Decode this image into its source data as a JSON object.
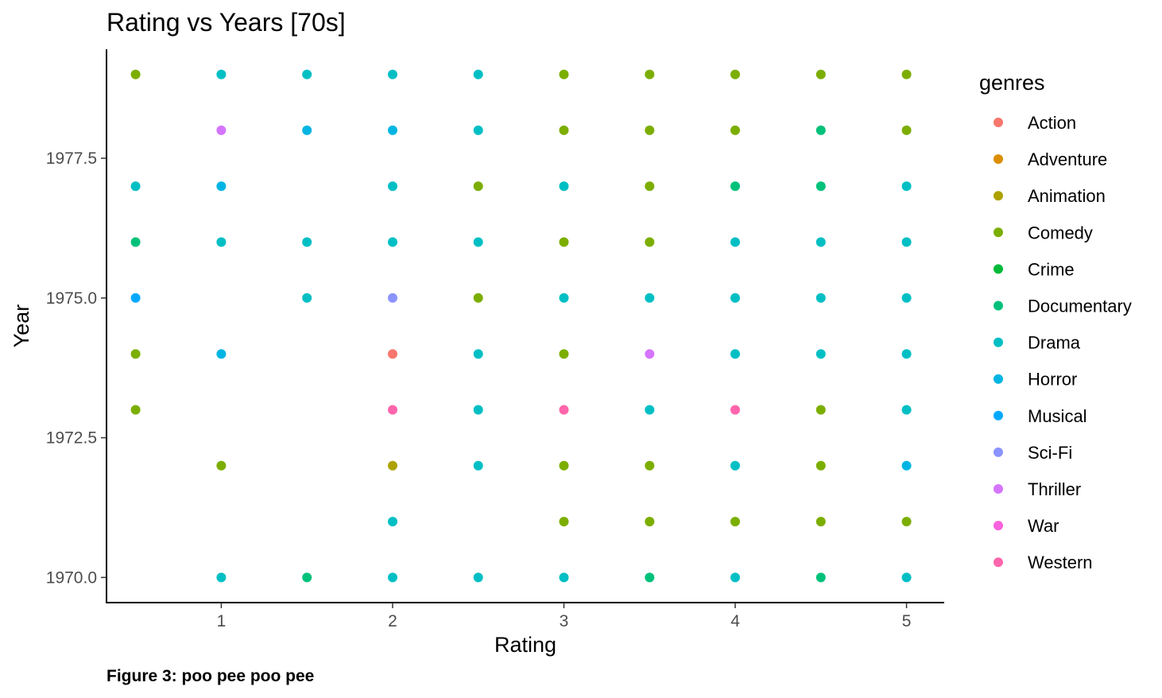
{
  "caption": "Figure 3: poo pee poo pee",
  "chart_data": {
    "type": "scatter",
    "title": "Rating vs Years [70s]",
    "xlabel": "Rating",
    "ylabel": "Year",
    "xlim": [
      0.33,
      5.22
    ],
    "ylim": [
      1969.55,
      1979.45
    ],
    "x_ticks": [
      1,
      2,
      3,
      4,
      5
    ],
    "x_tick_labels": [
      "1",
      "2",
      "3",
      "4",
      "5"
    ],
    "y_ticks": [
      1970.0,
      1972.5,
      1975.0,
      1977.5
    ],
    "y_tick_labels": [
      "1970.0",
      "1972.5",
      "1975.0",
      "1977.5"
    ],
    "grid": false,
    "legend": {
      "title": "genres",
      "position": "right",
      "entries": [
        {
          "name": "Action",
          "color": "#F8766D"
        },
        {
          "name": "Adventure",
          "color": "#DB8E00"
        },
        {
          "name": "Animation",
          "color": "#AEA200"
        },
        {
          "name": "Comedy",
          "color": "#7CAE00"
        },
        {
          "name": "Crime",
          "color": "#00BA38"
        },
        {
          "name": "Documentary",
          "color": "#00C17A"
        },
        {
          "name": "Drama",
          "color": "#00BFC4"
        },
        {
          "name": "Horror",
          "color": "#00B5E3"
        },
        {
          "name": "Musical",
          "color": "#00A9FF"
        },
        {
          "name": "Sci-Fi",
          "color": "#8B93FF"
        },
        {
          "name": "Thriller",
          "color": "#D575FE"
        },
        {
          "name": "War",
          "color": "#F962DD"
        },
        {
          "name": "Western",
          "color": "#FF65AC"
        }
      ]
    },
    "points": [
      {
        "x": 0.5,
        "y": 1979,
        "genre": "Comedy"
      },
      {
        "x": 1,
        "y": 1979,
        "genre": "Drama"
      },
      {
        "x": 1.5,
        "y": 1979,
        "genre": "Drama"
      },
      {
        "x": 2,
        "y": 1979,
        "genre": "Drama"
      },
      {
        "x": 2.5,
        "y": 1979,
        "genre": "Drama"
      },
      {
        "x": 3,
        "y": 1979,
        "genre": "Comedy"
      },
      {
        "x": 3.5,
        "y": 1979,
        "genre": "Comedy"
      },
      {
        "x": 4,
        "y": 1979,
        "genre": "Comedy"
      },
      {
        "x": 4.5,
        "y": 1979,
        "genre": "Comedy"
      },
      {
        "x": 5,
        "y": 1979,
        "genre": "Comedy"
      },
      {
        "x": 1,
        "y": 1978,
        "genre": "Thriller"
      },
      {
        "x": 1.5,
        "y": 1978,
        "genre": "Horror"
      },
      {
        "x": 2,
        "y": 1978,
        "genre": "Horror"
      },
      {
        "x": 2.5,
        "y": 1978,
        "genre": "Drama"
      },
      {
        "x": 3,
        "y": 1978,
        "genre": "Comedy"
      },
      {
        "x": 3.5,
        "y": 1978,
        "genre": "Comedy"
      },
      {
        "x": 4,
        "y": 1978,
        "genre": "Comedy"
      },
      {
        "x": 4.5,
        "y": 1978,
        "genre": "Documentary"
      },
      {
        "x": 5,
        "y": 1978,
        "genre": "Comedy"
      },
      {
        "x": 0.5,
        "y": 1977,
        "genre": "Drama"
      },
      {
        "x": 1,
        "y": 1977,
        "genre": "Horror"
      },
      {
        "x": 2,
        "y": 1977,
        "genre": "Drama"
      },
      {
        "x": 2.5,
        "y": 1977,
        "genre": "Comedy"
      },
      {
        "x": 3,
        "y": 1977,
        "genre": "Drama"
      },
      {
        "x": 3.5,
        "y": 1977,
        "genre": "Comedy"
      },
      {
        "x": 4,
        "y": 1977,
        "genre": "Documentary"
      },
      {
        "x": 4.5,
        "y": 1977,
        "genre": "Documentary"
      },
      {
        "x": 5,
        "y": 1977,
        "genre": "Drama"
      },
      {
        "x": 0.5,
        "y": 1976,
        "genre": "Documentary"
      },
      {
        "x": 1,
        "y": 1976,
        "genre": "Drama"
      },
      {
        "x": 1.5,
        "y": 1976,
        "genre": "Drama"
      },
      {
        "x": 2,
        "y": 1976,
        "genre": "Drama"
      },
      {
        "x": 2.5,
        "y": 1976,
        "genre": "Drama"
      },
      {
        "x": 3,
        "y": 1976,
        "genre": "Comedy"
      },
      {
        "x": 3.5,
        "y": 1976,
        "genre": "Comedy"
      },
      {
        "x": 4,
        "y": 1976,
        "genre": "Drama"
      },
      {
        "x": 4.5,
        "y": 1976,
        "genre": "Drama"
      },
      {
        "x": 5,
        "y": 1976,
        "genre": "Drama"
      },
      {
        "x": 0.5,
        "y": 1975,
        "genre": "Musical"
      },
      {
        "x": 1.5,
        "y": 1975,
        "genre": "Drama"
      },
      {
        "x": 2,
        "y": 1975,
        "genre": "Sci-Fi"
      },
      {
        "x": 2.5,
        "y": 1975,
        "genre": "Comedy"
      },
      {
        "x": 3,
        "y": 1975,
        "genre": "Drama"
      },
      {
        "x": 3.5,
        "y": 1975,
        "genre": "Drama"
      },
      {
        "x": 4,
        "y": 1975,
        "genre": "Drama"
      },
      {
        "x": 4.5,
        "y": 1975,
        "genre": "Drama"
      },
      {
        "x": 5,
        "y": 1975,
        "genre": "Drama"
      },
      {
        "x": 0.5,
        "y": 1974,
        "genre": "Comedy"
      },
      {
        "x": 1,
        "y": 1974,
        "genre": "Horror"
      },
      {
        "x": 2,
        "y": 1974,
        "genre": "Action"
      },
      {
        "x": 2.5,
        "y": 1974,
        "genre": "Drama"
      },
      {
        "x": 3,
        "y": 1974,
        "genre": "Comedy"
      },
      {
        "x": 3.5,
        "y": 1974,
        "genre": "Thriller"
      },
      {
        "x": 4,
        "y": 1974,
        "genre": "Drama"
      },
      {
        "x": 4.5,
        "y": 1974,
        "genre": "Drama"
      },
      {
        "x": 5,
        "y": 1974,
        "genre": "Drama"
      },
      {
        "x": 0.5,
        "y": 1973,
        "genre": "Comedy"
      },
      {
        "x": 2,
        "y": 1973,
        "genre": "Western"
      },
      {
        "x": 2.5,
        "y": 1973,
        "genre": "Drama"
      },
      {
        "x": 3,
        "y": 1973,
        "genre": "Western"
      },
      {
        "x": 3.5,
        "y": 1973,
        "genre": "Drama"
      },
      {
        "x": 4,
        "y": 1973,
        "genre": "Western"
      },
      {
        "x": 4.5,
        "y": 1973,
        "genre": "Comedy"
      },
      {
        "x": 5,
        "y": 1973,
        "genre": "Drama"
      },
      {
        "x": 1,
        "y": 1972,
        "genre": "Comedy"
      },
      {
        "x": 2,
        "y": 1972,
        "genre": "Animation"
      },
      {
        "x": 2.5,
        "y": 1972,
        "genre": "Drama"
      },
      {
        "x": 3,
        "y": 1972,
        "genre": "Comedy"
      },
      {
        "x": 3.5,
        "y": 1972,
        "genre": "Comedy"
      },
      {
        "x": 4,
        "y": 1972,
        "genre": "Drama"
      },
      {
        "x": 4.5,
        "y": 1972,
        "genre": "Comedy"
      },
      {
        "x": 5,
        "y": 1972,
        "genre": "Horror"
      },
      {
        "x": 2,
        "y": 1971,
        "genre": "Drama"
      },
      {
        "x": 3,
        "y": 1971,
        "genre": "Comedy"
      },
      {
        "x": 3.5,
        "y": 1971,
        "genre": "Comedy"
      },
      {
        "x": 4,
        "y": 1971,
        "genre": "Comedy"
      },
      {
        "x": 4.5,
        "y": 1971,
        "genre": "Comedy"
      },
      {
        "x": 5,
        "y": 1971,
        "genre": "Comedy"
      },
      {
        "x": 1,
        "y": 1970,
        "genre": "Drama"
      },
      {
        "x": 1.5,
        "y": 1970,
        "genre": "Documentary"
      },
      {
        "x": 2,
        "y": 1970,
        "genre": "Drama"
      },
      {
        "x": 2.5,
        "y": 1970,
        "genre": "Drama"
      },
      {
        "x": 3,
        "y": 1970,
        "genre": "Drama"
      },
      {
        "x": 3.5,
        "y": 1970,
        "genre": "Documentary"
      },
      {
        "x": 4,
        "y": 1970,
        "genre": "Drama"
      },
      {
        "x": 4.5,
        "y": 1970,
        "genre": "Documentary"
      },
      {
        "x": 5,
        "y": 1970,
        "genre": "Drama"
      }
    ]
  }
}
